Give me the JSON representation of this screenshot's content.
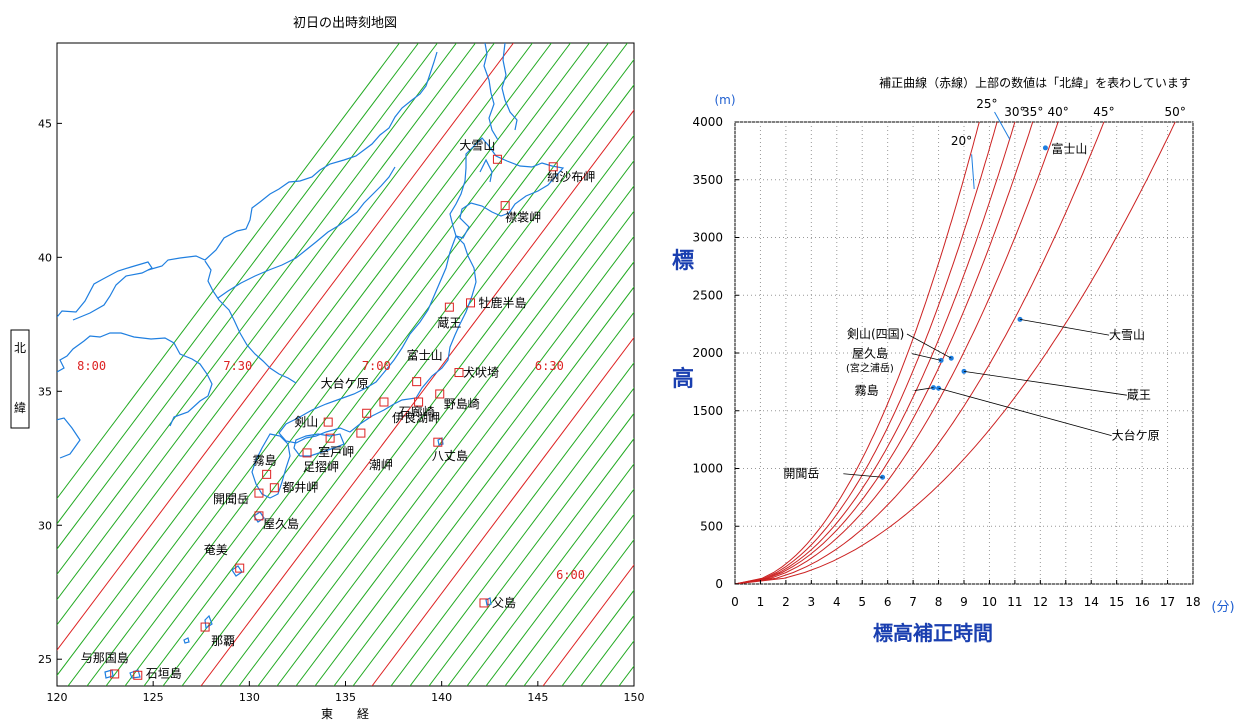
{
  "map": {
    "title": "初日の出時刻地図",
    "lat_axis_label": "北緯",
    "lon_axis_label": "東　　経",
    "lon_range": [
      120,
      150
    ],
    "lat_range": [
      24,
      48
    ],
    "lon_ticks": [
      "120",
      "125",
      "130",
      "135",
      "140",
      "145",
      "150"
    ],
    "lat_ticks": [
      "25",
      "30",
      "35",
      "40",
      "45"
    ],
    "isochrone_colors": {
      "half_hour": "#dd2222",
      "minor": "#22aa22"
    },
    "coast_color": "#1f7fe0",
    "time_labels": [
      {
        "text": "8:00",
        "lon": 121.8,
        "lat": 35.8
      },
      {
        "text": "7:30",
        "lon": 129.4,
        "lat": 35.8
      },
      {
        "text": "7:00",
        "lon": 136.6,
        "lat": 35.8
      },
      {
        "text": "6:30",
        "lon": 145.6,
        "lat": 35.8
      },
      {
        "text": "6:00",
        "lon": 146.7,
        "lat": 28.0
      }
    ],
    "places": [
      {
        "name": "大雪山",
        "lon": 142.9,
        "lat": 43.66
      },
      {
        "name": "納沙布岬",
        "lon": 145.8,
        "lat": 43.38
      },
      {
        "name": "襟裳岬",
        "lon": 143.3,
        "lat": 41.93
      },
      {
        "name": "牡鹿半島",
        "lon": 141.5,
        "lat": 38.3
      },
      {
        "name": "蔵王",
        "lon": 140.4,
        "lat": 38.14
      },
      {
        "name": "富士山",
        "lon": 138.7,
        "lat": 35.36
      },
      {
        "name": "犬吠埼",
        "lon": 140.9,
        "lat": 35.7
      },
      {
        "name": "大台ケ原",
        "lon": 136.1,
        "lat": 34.18
      },
      {
        "name": "石廊崎",
        "lon": 138.8,
        "lat": 34.6
      },
      {
        "name": "野島崎",
        "lon": 139.9,
        "lat": 34.9
      },
      {
        "name": "伊良湖岬",
        "lon": 137.0,
        "lat": 34.6
      },
      {
        "name": "剣山",
        "lon": 134.1,
        "lat": 33.85
      },
      {
        "name": "室戸岬",
        "lon": 134.2,
        "lat": 33.25
      },
      {
        "name": "潮岬",
        "lon": 135.8,
        "lat": 33.44
      },
      {
        "name": "八丈島",
        "lon": 139.8,
        "lat": 33.1
      },
      {
        "name": "霧島",
        "lon": 130.9,
        "lat": 31.9
      },
      {
        "name": "足摺岬",
        "lon": 133.0,
        "lat": 32.7
      },
      {
        "name": "開聞岳",
        "lon": 130.5,
        "lat": 31.2
      },
      {
        "name": "都井岬",
        "lon": 131.3,
        "lat": 31.4
      },
      {
        "name": "屋久島",
        "lon": 130.5,
        "lat": 30.35
      },
      {
        "name": "奄美",
        "lon": 129.5,
        "lat": 28.4
      },
      {
        "name": "那覇",
        "lon": 127.7,
        "lat": 26.2
      },
      {
        "name": "父島",
        "lon": 142.2,
        "lat": 27.1
      },
      {
        "name": "与那国島",
        "lon": 123.0,
        "lat": 24.45
      },
      {
        "name": "石垣島",
        "lon": 124.2,
        "lat": 24.4
      }
    ]
  },
  "chart_data": {
    "type": "line",
    "title": "補正曲線（赤線）上部の数値は「北緯」を表わしています",
    "xlabel": "標高補正時間",
    "ylabel": "標高",
    "x_unit": "(分)",
    "y_unit": "(m)",
    "xlim": [
      0,
      18
    ],
    "ylim": [
      0,
      4000
    ],
    "x_ticks": [
      "0",
      "1",
      "2",
      "3",
      "4",
      "5",
      "6",
      "7",
      "8",
      "9",
      "10",
      "11",
      "12",
      "13",
      "14",
      "15",
      "16",
      "17",
      "18"
    ],
    "y_ticks": [
      "0",
      "500",
      "1000",
      "1500",
      "2000",
      "2500",
      "3000",
      "3500",
      "4000"
    ],
    "grid": true,
    "curve_color": "#cc2222",
    "point_color": "#1f7fe0",
    "series": [
      {
        "name": "20°",
        "x_at_4000m": 9.6
      },
      {
        "name": "25°",
        "x_at_4000m": 10.3
      },
      {
        "name": "30°",
        "x_at_4000m": 11.0
      },
      {
        "name": "35°",
        "x_at_4000m": 11.7
      },
      {
        "name": "40°",
        "x_at_4000m": 12.7
      },
      {
        "name": "45°",
        "x_at_4000m": 14.5
      },
      {
        "name": "50°",
        "x_at_4000m": 17.3
      }
    ],
    "points": [
      {
        "name": "富士山",
        "x": 12.2,
        "y": 3776
      },
      {
        "name": "大雪山",
        "x": 11.2,
        "y": 2291
      },
      {
        "name": "剣山(四国)",
        "x": 8.5,
        "y": 1955
      },
      {
        "name": "屋久島",
        "sub": "(宮之浦岳)",
        "x": 8.1,
        "y": 1936
      },
      {
        "name": "蔵王",
        "x": 9.0,
        "y": 1841
      },
      {
        "name": "霧島",
        "x": 7.8,
        "y": 1700
      },
      {
        "name": "大台ケ原",
        "x": 8.0,
        "y": 1695
      },
      {
        "name": "開聞岳",
        "x": 5.8,
        "y": 924
      }
    ]
  }
}
